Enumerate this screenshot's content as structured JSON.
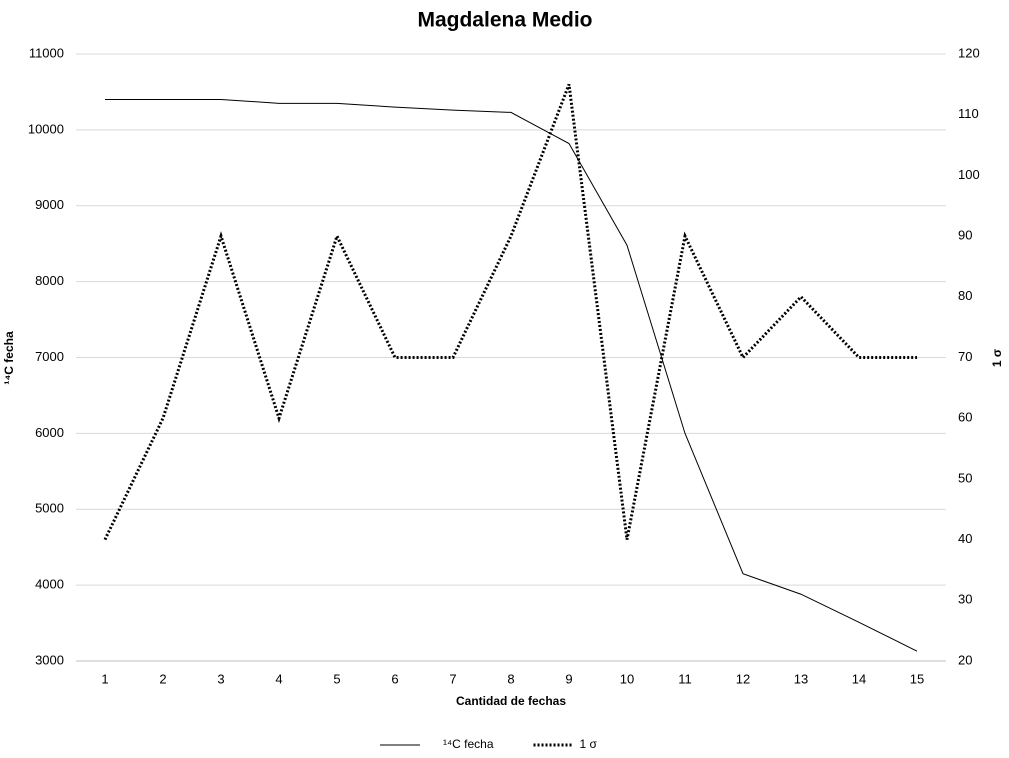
{
  "chart_data": {
    "type": "line",
    "title": "Magdalena Medio",
    "x_label": "Cantidad de fechas",
    "y_label": "¹⁴C fecha",
    "y2_label": "1 σ",
    "categories": [
      1,
      2,
      3,
      4,
      5,
      6,
      7,
      8,
      9,
      10,
      11,
      12,
      13,
      14,
      15
    ],
    "series": [
      {
        "name": "¹⁴C fecha",
        "color": "#000000",
        "line_style": "solid",
        "values": [
          10400,
          10400,
          10400,
          10350,
          10350,
          10300,
          10260,
          10230,
          9820,
          8480,
          6000,
          4150,
          3880,
          3510,
          3130
        ]
      },
      {
        "name": "1 σ",
        "color": "#000000",
        "line_style": "dotted",
        "axis": "y2",
        "values": [
          40,
          60,
          90,
          60,
          90,
          70,
          70,
          90,
          115,
          40,
          90,
          70,
          80,
          70,
          70
        ]
      }
    ],
    "ylim": [
      3000,
      11000
    ],
    "yticks": [
      3000,
      4000,
      5000,
      6000,
      7000,
      8000,
      9000,
      10000,
      11000
    ],
    "y2lim": [
      20,
      120
    ],
    "y2ticks": [
      20,
      30,
      40,
      50,
      60,
      70,
      80,
      90,
      100,
      110,
      120
    ],
    "grid": true,
    "legend": "bottom"
  }
}
